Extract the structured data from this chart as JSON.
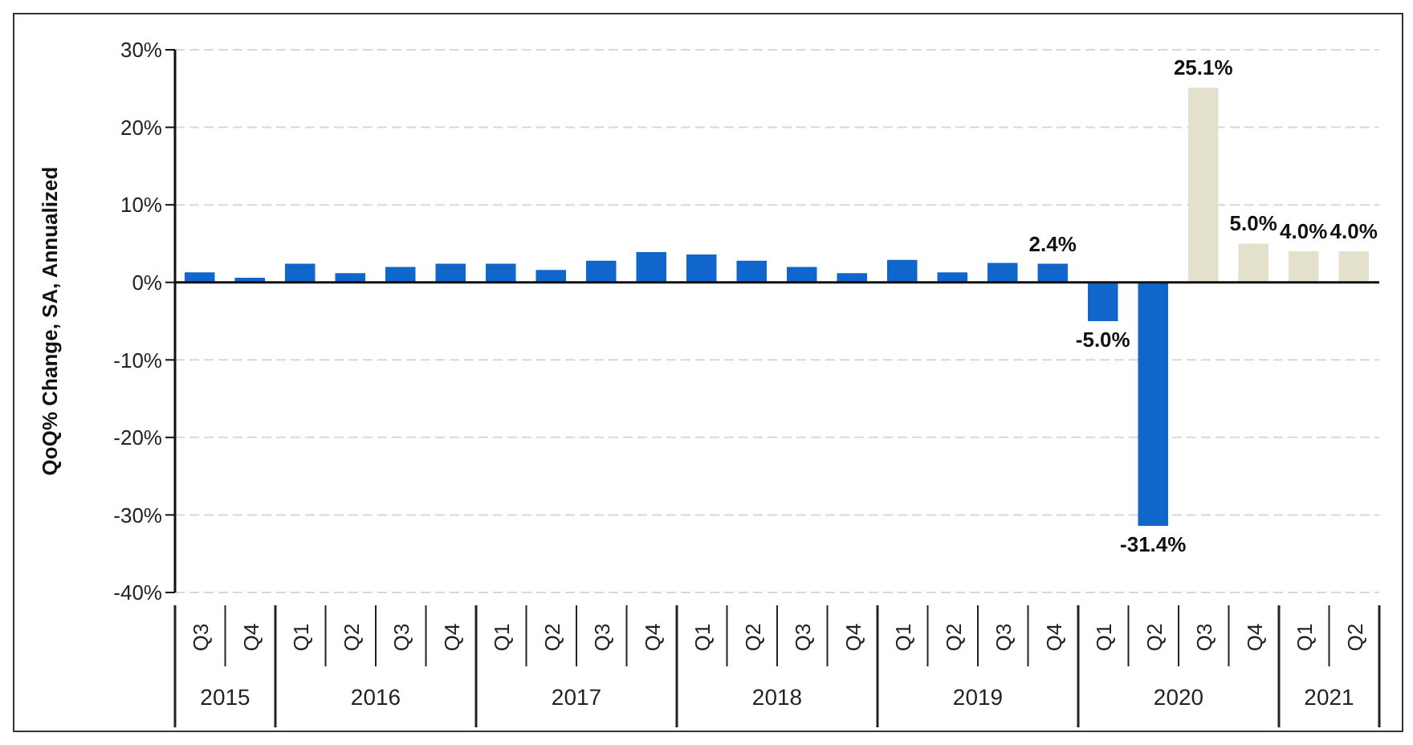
{
  "chart_data": {
    "type": "bar",
    "ylabel": "QoQ% Change, SA, Annualized",
    "categories": [
      "Q3",
      "Q4",
      "Q1",
      "Q2",
      "Q3",
      "Q4",
      "Q1",
      "Q2",
      "Q3",
      "Q4",
      "Q1",
      "Q2",
      "Q3",
      "Q4",
      "Q1",
      "Q2",
      "Q3",
      "Q4",
      "Q1",
      "Q2",
      "Q3",
      "Q4",
      "Q1",
      "Q2"
    ],
    "values": [
      1.3,
      0.6,
      2.4,
      1.2,
      2.0,
      2.4,
      2.4,
      1.6,
      2.8,
      3.9,
      3.6,
      2.8,
      2.0,
      1.2,
      2.9,
      1.3,
      2.5,
      2.4,
      -5.0,
      -31.4,
      25.1,
      5.0,
      4.0,
      4.0
    ],
    "colors": [
      "#1166cc",
      "#1166cc",
      "#1166cc",
      "#1166cc",
      "#1166cc",
      "#1166cc",
      "#1166cc",
      "#1166cc",
      "#1166cc",
      "#1166cc",
      "#1166cc",
      "#1166cc",
      "#1166cc",
      "#1166cc",
      "#1166cc",
      "#1166cc",
      "#1166cc",
      "#1166cc",
      "#1166cc",
      "#1166cc",
      "#e3e0cc",
      "#e3e0cc",
      "#e3e0cc",
      "#e3e0cc"
    ],
    "value_labels": [
      null,
      null,
      null,
      null,
      null,
      null,
      null,
      null,
      null,
      null,
      null,
      null,
      null,
      null,
      null,
      null,
      null,
      "2.4%",
      "-5.0%",
      "-31.4%",
      "25.1%",
      "5.0%",
      "4.0%",
      "4.0%"
    ],
    "ylim": [
      -40,
      30
    ],
    "yticks": [
      {
        "value": -40,
        "label": "-40%"
      },
      {
        "value": -30,
        "label": "-30%"
      },
      {
        "value": -20,
        "label": "-20%"
      },
      {
        "value": -10,
        "label": "-10%"
      },
      {
        "value": 0,
        "label": "0%"
      },
      {
        "value": 10,
        "label": "10%"
      },
      {
        "value": 20,
        "label": "20%"
      },
      {
        "value": 30,
        "label": "30%"
      }
    ],
    "grid": "y",
    "annotations": [
      "2015",
      "2016",
      "2017",
      "2018",
      "2019",
      "2020",
      "2021"
    ]
  }
}
